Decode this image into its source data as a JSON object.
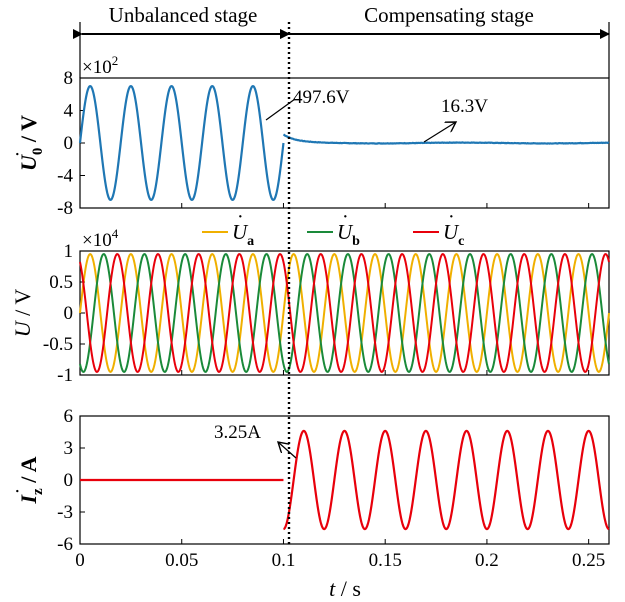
{
  "stages": {
    "left": "Unbalanced stage",
    "right": "Compensating stage"
  },
  "x_axis": {
    "label_var": "t",
    "label_unit": " / s",
    "ticks": [
      "0",
      "0.05",
      "0.1",
      "0.15",
      "0.2",
      "0.25"
    ]
  },
  "chart_data": [
    {
      "type": "line",
      "id": "u0",
      "ylabel_var": "U",
      "ylabel_sub": "0",
      "ylabel_unit": " / V",
      "multiplier_base": "×10",
      "multiplier_exp": "2",
      "ylim": [
        -8,
        8
      ],
      "yticks": [
        "8",
        "4",
        "0",
        "-4",
        "-8"
      ],
      "xlim": [
        0,
        0.26
      ],
      "color": "#1f77b4",
      "series": [
        {
          "segment": "unbalanced",
          "x_range": [
            0,
            0.1
          ],
          "waveform": "sine",
          "amplitude": 7,
          "frequency_hz": 50
        },
        {
          "segment": "compensating",
          "x_range": [
            0.1,
            0.26
          ],
          "waveform": "decay",
          "start_value": 1.0,
          "final_value": 0.0
        }
      ],
      "annotations": [
        {
          "text": "497.6V",
          "x": 0.1,
          "y": 4.98
        },
        {
          "text": "16.3V",
          "x": 0.17,
          "y": 0.16
        }
      ]
    },
    {
      "type": "line",
      "id": "uabc",
      "ylabel_var": "U",
      "ylabel_unit": " / V",
      "multiplier_base": "×10",
      "multiplier_exp": "4",
      "ylim": [
        -1,
        1
      ],
      "yticks": [
        "1",
        "0.5",
        "0",
        "-0.5",
        "-1"
      ],
      "xlim": [
        0,
        0.26
      ],
      "series": [
        {
          "name": "U",
          "sub": "a",
          "color": "#f0b000",
          "amplitude": 0.95,
          "frequency_hz": 50,
          "phase_deg": 0
        },
        {
          "name": "U",
          "sub": "b",
          "color": "#1a8a3a",
          "amplitude": 0.95,
          "frequency_hz": 50,
          "phase_deg": -120
        },
        {
          "name": "U",
          "sub": "c",
          "color": "#e8000b",
          "amplitude": 0.95,
          "frequency_hz": 50,
          "phase_deg": 120
        }
      ]
    },
    {
      "type": "line",
      "id": "iz",
      "ylabel_var": "I",
      "ylabel_sub": "z",
      "ylabel_unit": " / A",
      "ylim": [
        -6,
        6
      ],
      "yticks": [
        "6",
        "3",
        "0",
        "-3",
        "-6"
      ],
      "xlim": [
        0,
        0.26
      ],
      "color": "#e8000b",
      "series": [
        {
          "segment": "unbalanced",
          "x_range": [
            0,
            0.1
          ],
          "value": 0
        },
        {
          "segment": "compensating",
          "x_range": [
            0.1,
            0.26
          ],
          "waveform": "sine",
          "amplitude": 4.6,
          "frequency_hz": 50,
          "phase_deg": -90
        }
      ],
      "annotations": [
        {
          "text": "3.25A",
          "x": 0.1,
          "y": 3.25
        }
      ]
    }
  ]
}
